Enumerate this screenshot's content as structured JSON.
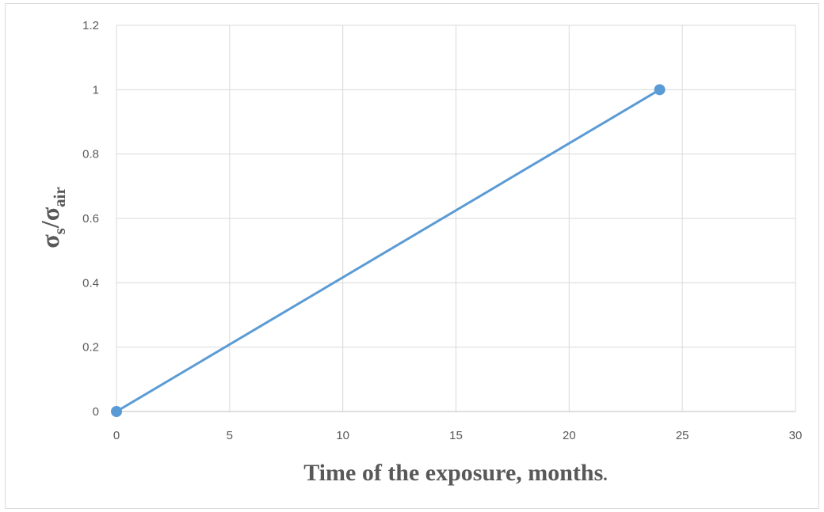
{
  "chart_data": {
    "type": "line",
    "title": "",
    "xlabel": "Time of the exposure, months",
    "xlabel_suffix": ".",
    "ylabel": {
      "base1": "σ",
      "sub1": "s",
      "sep": "/",
      "base2": "σ",
      "sub2": "air"
    },
    "xlim": [
      0,
      30
    ],
    "ylim": [
      0,
      1.2
    ],
    "x_ticks": [
      "0",
      "5",
      "10",
      "15",
      "20",
      "25",
      "30"
    ],
    "y_ticks": [
      "0",
      "0.2",
      "0.4",
      "0.6",
      "0.8",
      "1",
      "1.2"
    ],
    "grid": true,
    "legend": "none",
    "series": [
      {
        "x": [
          0,
          24
        ],
        "y": [
          0,
          1
        ],
        "color": "#5b9bd5",
        "markers": true
      }
    ]
  }
}
